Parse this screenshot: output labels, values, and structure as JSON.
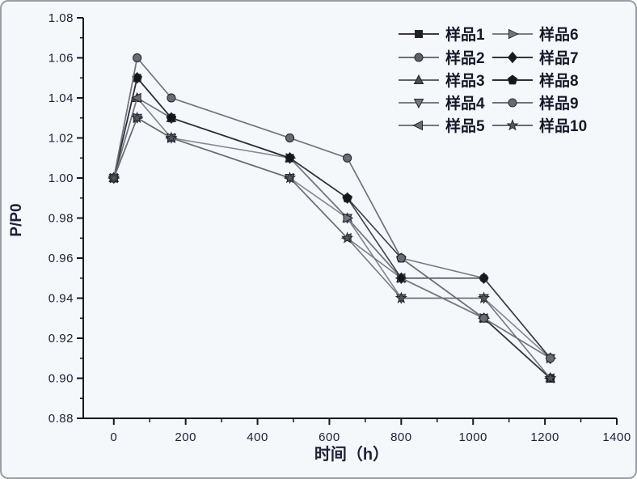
{
  "window": {
    "background": "#f4f8fb",
    "border_color": "#9a9da3"
  },
  "colors": {
    "axis": "#17171f",
    "tick_text": "#20203a",
    "marker_stroke": "#26262f"
  },
  "axes": {
    "xlabel": "时间（h）",
    "ylabel": "P/P0"
  },
  "chart_data": {
    "type": "line",
    "title": "",
    "xlabel": "时间（h）",
    "ylabel": "P/P0",
    "grid": false,
    "legend_position": "top-right",
    "xlim": [
      -85,
      1400
    ],
    "ylim": [
      0.88,
      1.08
    ],
    "x_major_ticks": [
      0,
      200,
      400,
      600,
      800,
      1000,
      1200,
      1400
    ],
    "x_minor_ticks": [
      100,
      300,
      500,
      700,
      900,
      1100,
      1300
    ],
    "y_major_ticks": [
      0.88,
      0.9,
      0.92,
      0.94,
      0.96,
      0.98,
      1.0,
      1.02,
      1.04,
      1.06,
      1.08
    ],
    "y_minor_ticks": [
      0.89,
      0.91,
      0.93,
      0.95,
      0.97,
      0.99,
      1.01,
      1.03,
      1.05,
      1.07
    ],
    "x": [
      0,
      65,
      160,
      490,
      650,
      800,
      1030,
      1215
    ],
    "series": [
      {
        "name": "样品1",
        "marker": "square",
        "color": "#1f1f28",
        "line_color": "#3a3a46",
        "values": [
          1.0,
          1.05,
          1.03,
          1.01,
          0.98,
          0.95,
          0.93,
          0.9
        ]
      },
      {
        "name": "样品2",
        "marker": "circle",
        "color": "#5f5f6a",
        "line_color": "#6e6e79",
        "values": [
          1.0,
          1.06,
          1.04,
          1.02,
          1.01,
          0.96,
          0.95,
          0.91
        ]
      },
      {
        "name": "样品3",
        "marker": "triangle-up",
        "color": "#4a4a55",
        "line_color": "#62626d",
        "values": [
          1.0,
          1.04,
          1.03,
          1.01,
          0.98,
          0.95,
          0.93,
          0.9
        ]
      },
      {
        "name": "样品4",
        "marker": "triangle-down",
        "color": "#74747e",
        "line_color": "#7b7b85",
        "values": [
          1.0,
          1.03,
          1.02,
          1.0,
          0.98,
          0.94,
          0.94,
          0.91
        ]
      },
      {
        "name": "样品5",
        "marker": "triangle-left",
        "color": "#6b6b75",
        "line_color": "#74747e",
        "values": [
          1.0,
          1.04,
          1.02,
          1.0,
          0.97,
          0.95,
          0.93,
          0.9
        ]
      },
      {
        "name": "样品6",
        "marker": "triangle-right",
        "color": "#77777f",
        "line_color": "#7d7d87",
        "values": [
          1.0,
          1.03,
          1.02,
          1.01,
          0.98,
          0.95,
          0.93,
          0.91
        ]
      },
      {
        "name": "样品7",
        "marker": "diamond",
        "color": "#17171f",
        "line_color": "#32323c",
        "values": [
          1.0,
          1.05,
          1.03,
          1.01,
          0.99,
          0.95,
          0.95,
          0.91
        ]
      },
      {
        "name": "样品8",
        "marker": "pentagon",
        "color": "#15151d",
        "line_color": "#2e2e38",
        "values": [
          1.0,
          1.05,
          1.03,
          1.01,
          0.99,
          0.96,
          0.93,
          0.9
        ]
      },
      {
        "name": "样品9",
        "marker": "circle",
        "color": "#6a6a74",
        "line_color": "#73737d",
        "values": [
          1.0,
          1.06,
          1.04,
          1.02,
          1.01,
          0.96,
          0.93,
          0.91
        ]
      },
      {
        "name": "样品10",
        "marker": "star",
        "color": "#55555f",
        "line_color": "#6a6a74",
        "values": [
          1.0,
          1.03,
          1.02,
          1.0,
          0.97,
          0.94,
          0.94,
          0.9
        ]
      }
    ]
  }
}
